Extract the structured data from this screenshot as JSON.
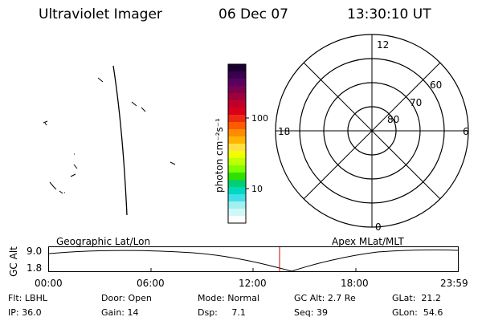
{
  "header": {
    "title": "Ultraviolet Imager",
    "date": "06 Dec 07",
    "time": "13:30:10 UT"
  },
  "colorbar": {
    "unit_label": "photon cm⁻²s⁻¹",
    "tick_labels": [
      "100",
      "10"
    ],
    "colors": [
      "#1a0030",
      "#3a0050",
      "#5a0060",
      "#7a0050",
      "#a0003a",
      "#c0002a",
      "#d9001a",
      "#ee2a10",
      "#ff5a00",
      "#ff8c00",
      "#ffb400",
      "#ffe040",
      "#f0ff00",
      "#c0ff00",
      "#7dff00",
      "#30e000",
      "#00d070",
      "#00d8c0",
      "#40e0e8",
      "#a0f0f0",
      "#d0f8f8",
      "#ffffff"
    ]
  },
  "polar_plot": {
    "labels": {
      "top": "12",
      "bottom": "0",
      "left": "18",
      "right": "6"
    },
    "lat_labels": [
      "60",
      "70",
      "80"
    ]
  },
  "timeline": {
    "left_label": "Geographic Lat/Lon",
    "right_label": "Apex MLat/MLT",
    "y_axis_label": "GC Alt",
    "y_ticks": [
      "9.0",
      "1.8"
    ],
    "x_ticks": [
      "00:00",
      "06:00",
      "12:00",
      "18:00",
      "23:59"
    ],
    "marker_color": "#cc0000"
  },
  "status": {
    "row1": [
      {
        "key": "Flt:",
        "value": "LBHL"
      },
      {
        "key": "Door:",
        "value": "Open"
      },
      {
        "key": "Mode:",
        "value": "Normal"
      },
      {
        "key": "GC Alt:",
        "value": "2.7 Re"
      },
      {
        "key": "GLat:",
        "value": "21.2"
      }
    ],
    "row2": [
      {
        "key": "IP:",
        "value": "36.0"
      },
      {
        "key": "Gain:",
        "value": "14"
      },
      {
        "key": "Dsp:",
        "value": "7.1"
      },
      {
        "key": "Seq:",
        "value": "39"
      },
      {
        "key": "GLon:",
        "value": "54.6"
      }
    ]
  }
}
